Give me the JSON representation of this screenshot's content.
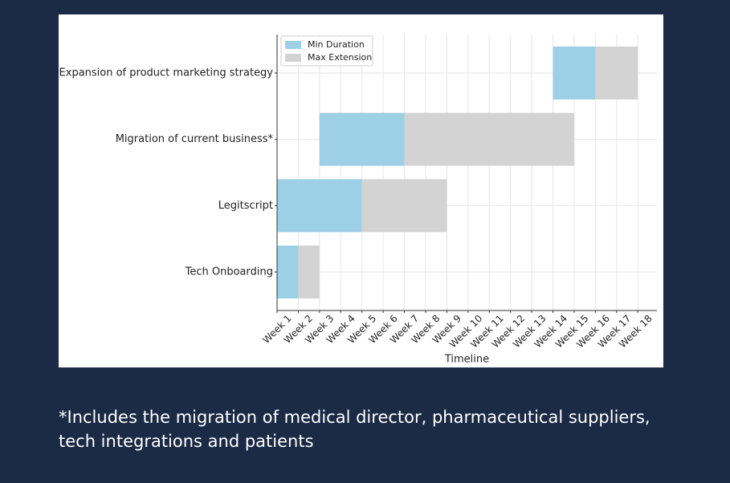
{
  "chart_data": {
    "type": "bar",
    "orientation": "horizontal",
    "stacked": true,
    "x_label": "Timeline",
    "categories": [
      "Tech Onboarding",
      "Legitscript",
      "Migration of current business*",
      "Expansion of product marketing strategy"
    ],
    "starts": [
      0,
      0,
      2,
      13
    ],
    "series": [
      {
        "name": "Min Duration",
        "color": "#9dd0e7",
        "values": [
          1,
          4,
          4,
          2
        ]
      },
      {
        "name": "Max Extension",
        "color": "#d3d3d3",
        "values": [
          1,
          4,
          8,
          2
        ]
      }
    ],
    "xlim": [
      0,
      17.9
    ],
    "xticks": [
      {
        "value": 0,
        "label": "Week 1"
      },
      {
        "value": 1,
        "label": "Week 2"
      },
      {
        "value": 2,
        "label": "Week 3"
      },
      {
        "value": 3,
        "label": "Week 4"
      },
      {
        "value": 4,
        "label": "Week 5"
      },
      {
        "value": 5,
        "label": "Week 6"
      },
      {
        "value": 6,
        "label": "Week 7"
      },
      {
        "value": 7,
        "label": "Week 8"
      },
      {
        "value": 8,
        "label": "Week 9"
      },
      {
        "value": 9,
        "label": "Week 10"
      },
      {
        "value": 10,
        "label": "Week 11"
      },
      {
        "value": 11,
        "label": "Week 12"
      },
      {
        "value": 12,
        "label": "Week 13"
      },
      {
        "value": 13,
        "label": "Week 14"
      },
      {
        "value": 14,
        "label": "Week 15"
      },
      {
        "value": 15,
        "label": "Week 16"
      },
      {
        "value": 16,
        "label": "Week 17"
      },
      {
        "value": 17,
        "label": "Week 18"
      }
    ],
    "grid": true,
    "legend": "upper left"
  },
  "footnote": [
    "*Includes the migration of medical director, pharmaceutical suppliers,",
    "tech integrations and patients"
  ]
}
